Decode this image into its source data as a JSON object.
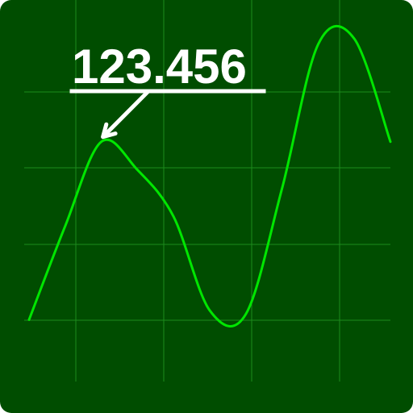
{
  "chart_data": {
    "type": "line",
    "grid": true,
    "colors": {
      "background": "#004d00",
      "grid": "#1d8a1d",
      "line": "#00e600",
      "annotation": "#ffffff"
    },
    "series": [
      {
        "points": [
          [
            0.0,
            0.05
          ],
          [
            0.5,
            0.55
          ],
          [
            1.0,
            1.0
          ],
          [
            1.5,
            0.85
          ],
          [
            2.0,
            0.6
          ],
          [
            2.5,
            0.1
          ],
          [
            3.0,
            0.08
          ],
          [
            3.5,
            0.75
          ],
          [
            4.0,
            1.52
          ],
          [
            4.5,
            1.55
          ],
          [
            5.0,
            1.0
          ]
        ]
      }
    ],
    "annotations": [
      {
        "text": "123.456",
        "point_index": 2
      }
    ]
  }
}
